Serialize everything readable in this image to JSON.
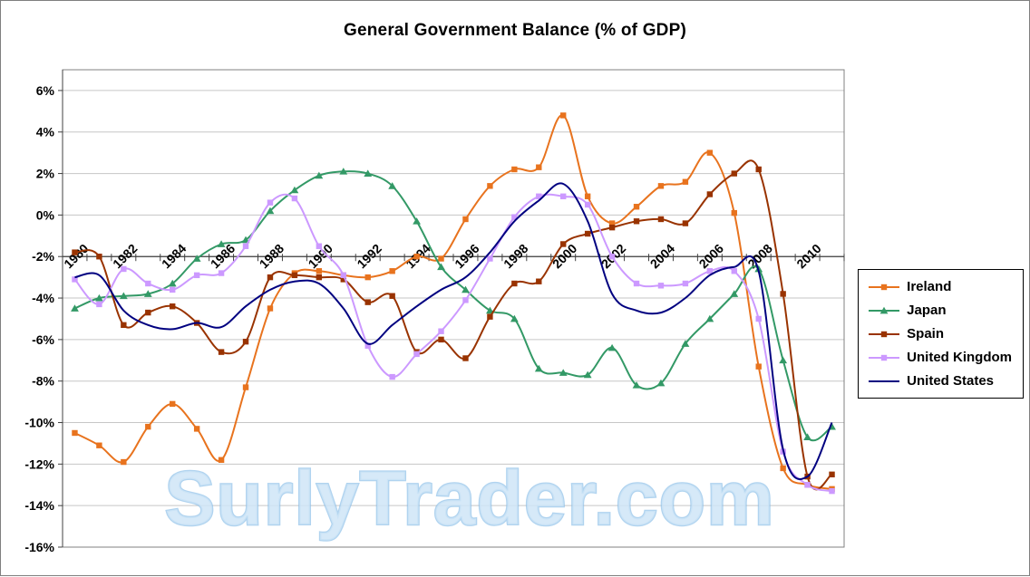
{
  "chart_data": {
    "type": "line",
    "title": "General Government Balance (% of GDP)",
    "x": [
      1980,
      1981,
      1982,
      1983,
      1984,
      1985,
      1986,
      1987,
      1988,
      1989,
      1990,
      1991,
      1992,
      1993,
      1994,
      1995,
      1996,
      1997,
      1998,
      1999,
      2000,
      2001,
      2002,
      2003,
      2004,
      2005,
      2006,
      2007,
      2008,
      2009,
      2010,
      2011
    ],
    "x_tick_labels": [
      "1980",
      "1982",
      "1984",
      "1986",
      "1988",
      "1990",
      "1992",
      "1994",
      "1996",
      "1998",
      "2000",
      "2002",
      "2004",
      "2006",
      "2008",
      "2010"
    ],
    "y_ticks": [
      6,
      4,
      2,
      0,
      -2,
      -4,
      -6,
      -8,
      -10,
      -12,
      -14,
      -16
    ],
    "y_tick_labels": [
      "6%",
      "4%",
      "2%",
      "0%",
      "-2%",
      "-4%",
      "-6%",
      "-8%",
      "-10%",
      "-12%",
      "-14%",
      "-16%"
    ],
    "ylim": [
      -16,
      7
    ],
    "x_axis_cross": -2,
    "grid": true,
    "legend_position": "right",
    "series": [
      {
        "name": "Ireland",
        "color": "#E8731E",
        "marker": "square",
        "values": [
          -10.5,
          -11.1,
          -11.9,
          -10.2,
          -9.1,
          -10.3,
          -11.8,
          -8.3,
          -4.5,
          -2.8,
          -2.7,
          -2.9,
          -3.0,
          -2.7,
          -2.0,
          -2.1,
          -0.2,
          1.4,
          2.2,
          2.3,
          4.8,
          0.9,
          -0.4,
          0.4,
          1.4,
          1.6,
          3.0,
          0.1,
          -7.3,
          -12.2,
          -13.0,
          -13.2
        ]
      },
      {
        "name": "Japan",
        "color": "#339966",
        "marker": "triangle",
        "values": [
          -4.5,
          -4.0,
          -3.9,
          -3.8,
          -3.3,
          -2.1,
          -1.4,
          -1.2,
          0.2,
          1.2,
          1.9,
          2.1,
          2.0,
          1.4,
          -0.3,
          -2.5,
          -3.6,
          -4.6,
          -5.0,
          -7.4,
          -7.6,
          -7.7,
          -6.4,
          -8.2,
          -8.1,
          -6.2,
          -5.0,
          -3.8,
          -2.6,
          -7.0,
          -10.7,
          -10.2
        ]
      },
      {
        "name": "Spain",
        "color": "#993300",
        "marker": "square",
        "values": [
          -1.8,
          -2.0,
          -5.3,
          -4.7,
          -4.4,
          -5.2,
          -6.6,
          -6.1,
          -3.0,
          -2.9,
          -3.0,
          -3.1,
          -4.2,
          -3.9,
          -6.6,
          -6.0,
          -6.9,
          -4.9,
          -3.3,
          -3.2,
          -1.4,
          -0.9,
          -0.6,
          -0.3,
          -0.2,
          -0.4,
          1.0,
          2.0,
          2.2,
          -3.8,
          -12.6,
          -12.5
        ]
      },
      {
        "name": "United Kingdom",
        "color": "#CC99FF",
        "marker": "square",
        "values": [
          -3.1,
          -4.3,
          -2.6,
          -3.3,
          -3.6,
          -2.9,
          -2.8,
          -1.5,
          0.6,
          0.8,
          -1.5,
          -2.9,
          -6.3,
          -7.8,
          -6.7,
          -5.6,
          -4.1,
          -2.1,
          -0.1,
          0.9,
          0.9,
          0.5,
          -2.0,
          -3.3,
          -3.4,
          -3.3,
          -2.7,
          -2.7,
          -5.0,
          -11.4,
          -13.0,
          -13.3
        ]
      },
      {
        "name": "United States",
        "color": "#000080",
        "marker": "none",
        "values": [
          -3.0,
          -2.9,
          -4.6,
          -5.3,
          -5.5,
          -5.2,
          -5.4,
          -4.4,
          -3.6,
          -3.2,
          -3.3,
          -4.5,
          -6.2,
          -5.3,
          -4.4,
          -3.6,
          -3.0,
          -1.8,
          -0.3,
          0.7,
          1.5,
          -0.3,
          -3.8,
          -4.6,
          -4.7,
          -4.0,
          -2.9,
          -2.5,
          -2.7,
          -11.3,
          -12.6,
          -10.0
        ]
      }
    ]
  },
  "watermark": {
    "text": "SurlyTrader.com",
    "fill": "#cfe5f7",
    "stroke": "#8fc0e8"
  },
  "style_colors": {
    "gridline": "#c6c6c6",
    "axis": "#404040",
    "plot_border": "#808080"
  }
}
